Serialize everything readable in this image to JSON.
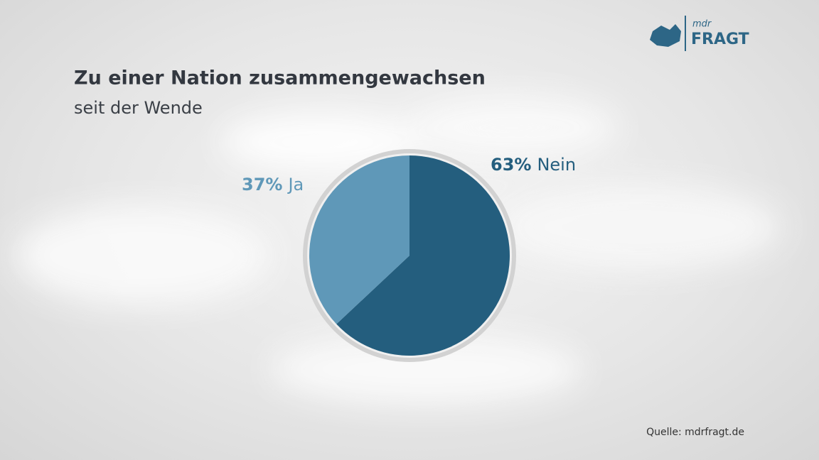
{
  "chart_data": {
    "type": "pie",
    "title": "Zu einer Nation zusammengewachsen",
    "subtitle": "seit der Wende",
    "categories": [
      "Nein",
      "Ja"
    ],
    "values": [
      63,
      37
    ],
    "value_labels": [
      "63%",
      "37%"
    ],
    "colors": [
      "#245e7e",
      "#5f98b8"
    ]
  },
  "logo": {
    "brand": "mdr",
    "name": "FRAGT"
  },
  "source": "Quelle: mdrfragt.de"
}
